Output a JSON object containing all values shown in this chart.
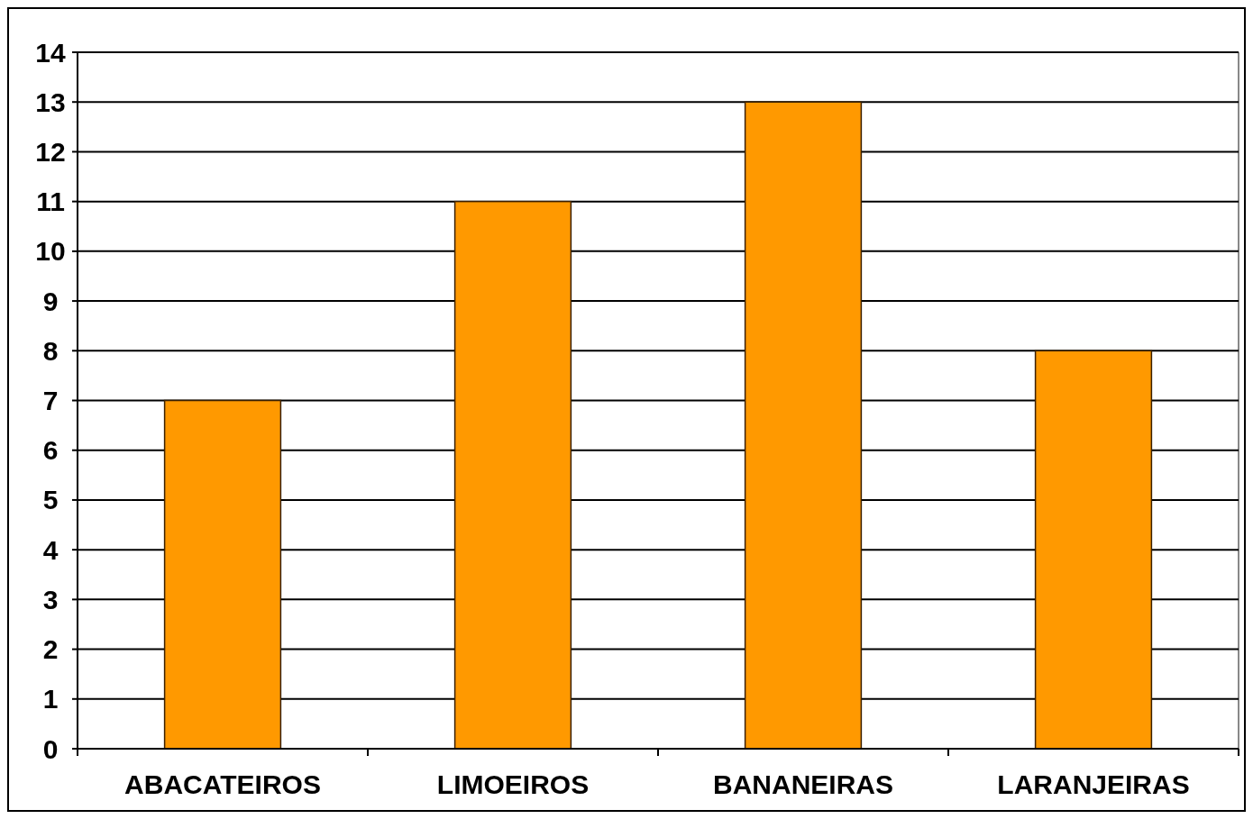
{
  "chart_data": {
    "type": "bar",
    "categories": [
      "ABACATEIROS",
      "LIMOEIROS",
      "BANANEIRAS",
      "LARANJEIRAS"
    ],
    "values": [
      7,
      11,
      13,
      8
    ],
    "color": "#ff9900",
    "ylim": [
      0,
      14
    ],
    "yticks": [
      0,
      1,
      2,
      3,
      4,
      5,
      6,
      7,
      8,
      9,
      10,
      11,
      12,
      13,
      14
    ],
    "grid": "y"
  }
}
